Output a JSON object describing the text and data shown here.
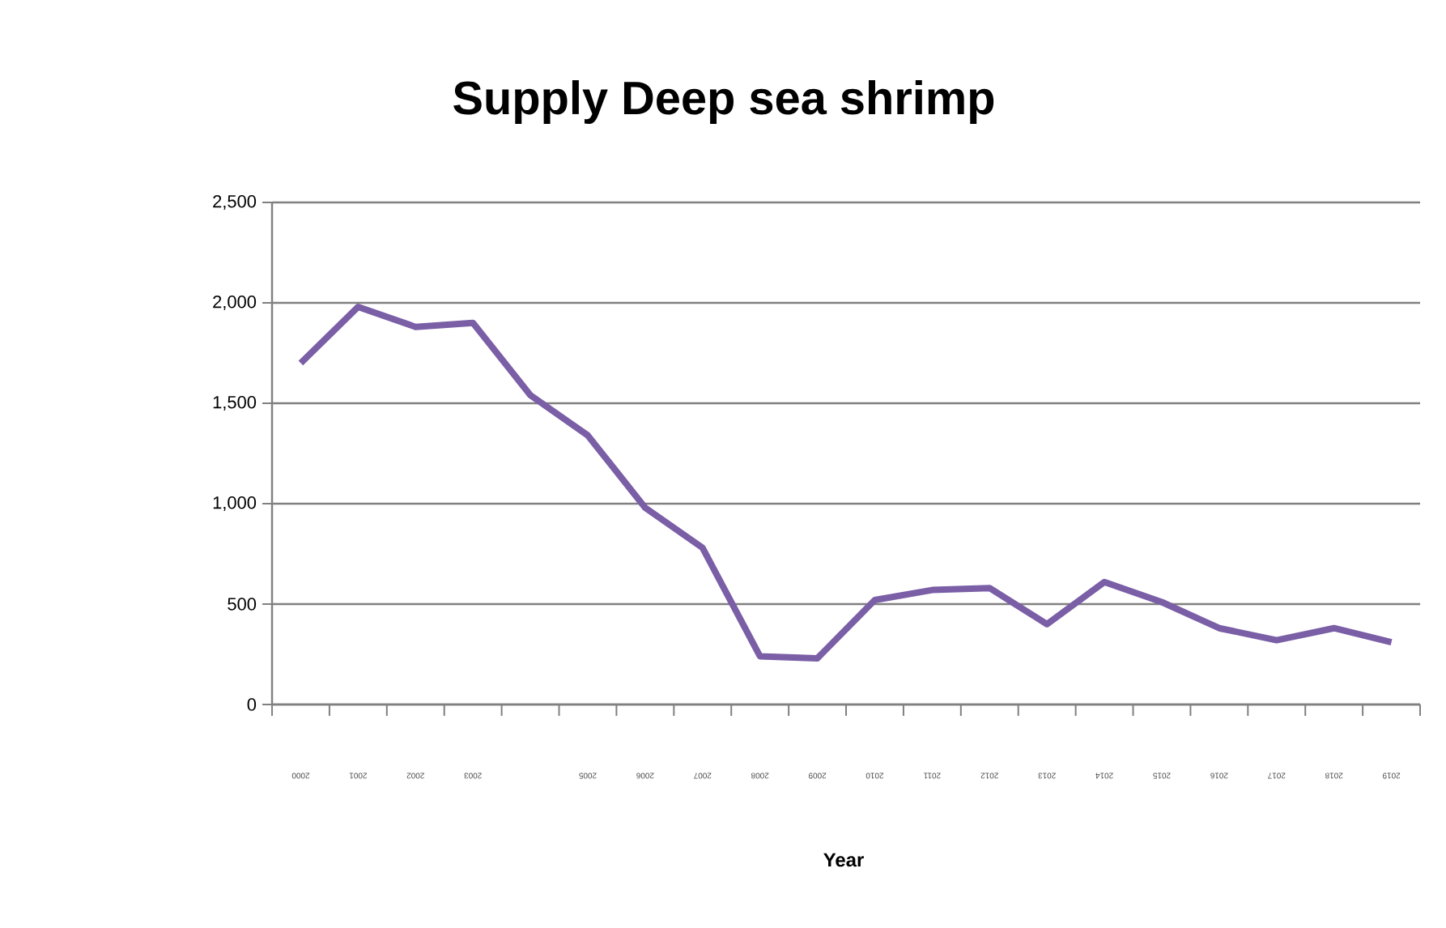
{
  "chart_data": {
    "type": "line",
    "title": "Supply Deep sea shrimp",
    "xlabel": "Year",
    "categories": [
      "2000",
      "2001",
      "2002",
      "2003",
      null,
      "2005",
      "2006",
      "2007",
      "2008",
      "2009",
      "2010",
      "2011",
      "2012",
      "2013",
      "2014",
      "2015",
      "2016",
      "2017",
      "2018",
      "2019"
    ],
    "series": [
      {
        "color": "#7a5ea6",
        "values": [
          1700,
          1980,
          1880,
          1900,
          1540,
          1340,
          980,
          780,
          240,
          230,
          520,
          570,
          580,
          400,
          610,
          510,
          380,
          320,
          380,
          310
        ]
      }
    ],
    "ylim": [
      0,
      2500
    ],
    "yticks": [
      0,
      500,
      {
        "value": 1000,
        "label": "1,000"
      },
      {
        "value": 1500,
        "label": "1,500"
      },
      {
        "value": 2000,
        "label": "2,000"
      },
      {
        "value": 2500,
        "label": "2,500"
      }
    ],
    "grid": "y",
    "marker": "none",
    "line_style": "solid"
  }
}
